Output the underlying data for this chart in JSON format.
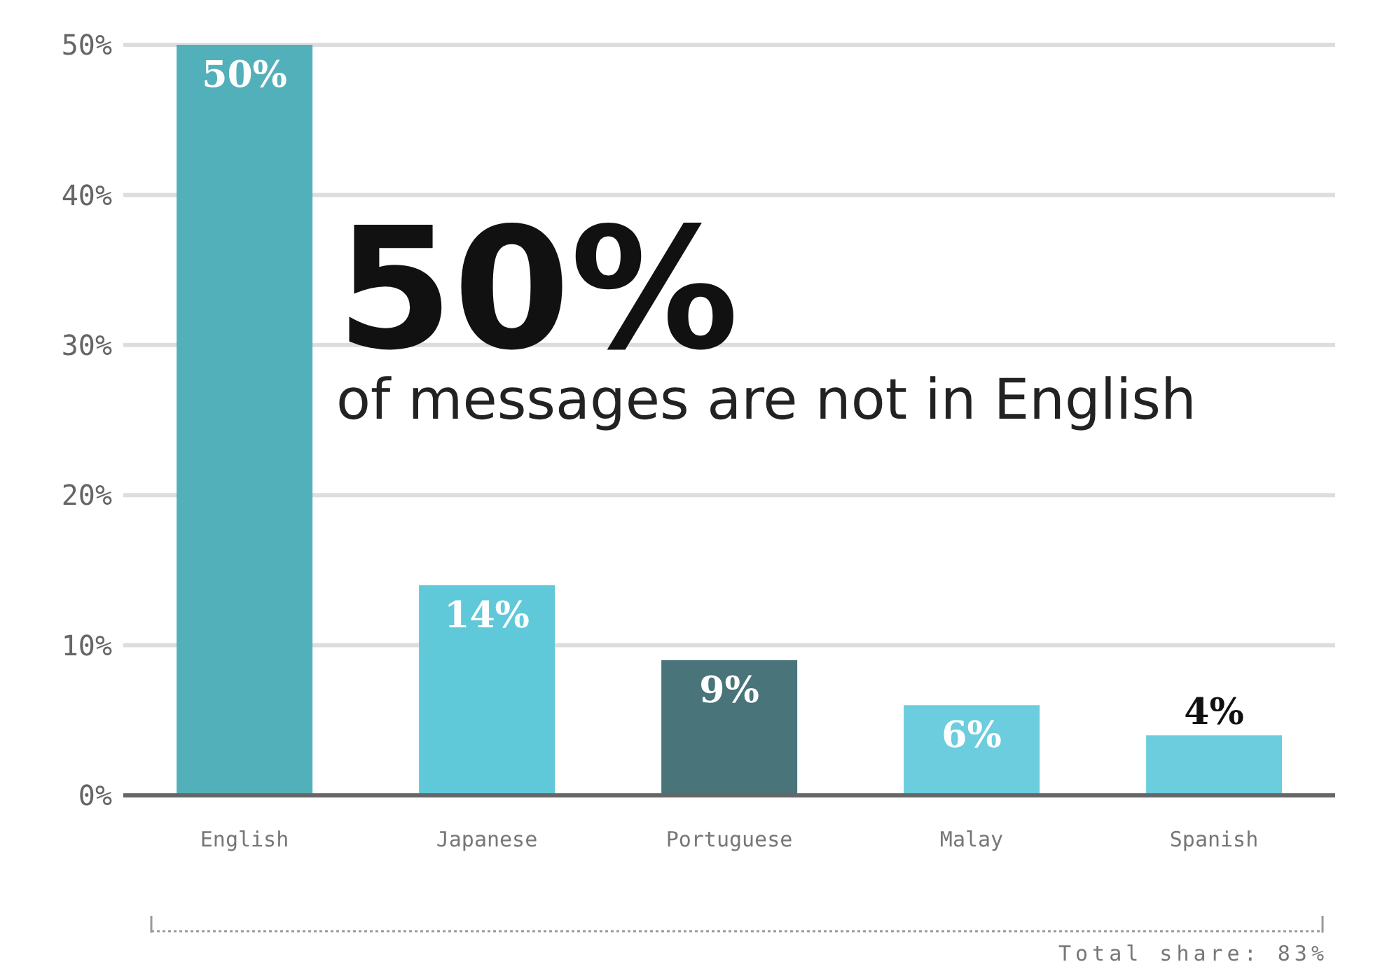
{
  "chart_data": {
    "type": "bar",
    "categories": [
      "English",
      "Japanese",
      "Portuguese",
      "Malay",
      "Spanish"
    ],
    "values": [
      50,
      14,
      9,
      6,
      4
    ],
    "colors": [
      "#52b0ba",
      "#5fc9da",
      "#48747a",
      "#6bcddd",
      "#6bcddd"
    ],
    "value_labels": [
      "50%",
      "14%",
      "9%",
      "6%",
      "4%"
    ],
    "ylim": [
      0,
      50
    ],
    "yticks": [
      {
        "value": 0,
        "label": "0%"
      },
      {
        "value": 10,
        "label": "10%"
      },
      {
        "value": 20,
        "label": "20%"
      },
      {
        "value": 30,
        "label": "30%"
      },
      {
        "value": 40,
        "label": "40%"
      },
      {
        "value": 50,
        "label": "50%"
      }
    ],
    "grid": "y",
    "annotations": [
      "50%",
      "of messages are not in English",
      "Total share: 83%"
    ]
  }
}
